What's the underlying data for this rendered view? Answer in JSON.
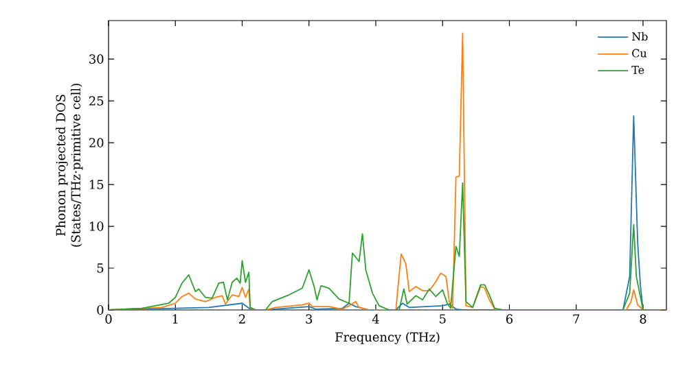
{
  "chart_data": {
    "type": "line",
    "xlabel": "Frequency (THz)",
    "ylabel": "Phonon projected DOS\n(States/THz·primitive cell)",
    "xlim": [
      0,
      8.35
    ],
    "ylim": [
      0,
      34.6
    ],
    "xticks": [
      0,
      1,
      2,
      3,
      4,
      5,
      6,
      7,
      8
    ],
    "yticks": [
      0,
      5,
      10,
      15,
      20,
      25,
      30
    ],
    "legend": "top right",
    "grid": false,
    "marker": "none",
    "line_style": "solid",
    "series": [
      {
        "name": "Nb",
        "color": "#1f77b4",
        "x": [
          0,
          1.0,
          1.5,
          2.0,
          2.12,
          2.2,
          2.35,
          3.0,
          3.1,
          3.5,
          3.6,
          3.7,
          3.9,
          4.3,
          4.4,
          4.5,
          5.0,
          5.1,
          5.2,
          5.3,
          7.7,
          7.8,
          7.86,
          7.92,
          7.96,
          8.0,
          8.35
        ],
        "values": [
          0,
          0.2,
          0.3,
          0.8,
          0.1,
          0,
          0,
          0.4,
          0.1,
          0.2,
          0.8,
          0.4,
          0,
          0,
          0.8,
          0.3,
          0.5,
          0.7,
          0.1,
          0,
          0,
          4,
          23.2,
          8,
          3,
          0,
          0
        ]
      },
      {
        "name": "Cu",
        "color": "#ff7f0e",
        "x": [
          0,
          0.8,
          1.0,
          1.1,
          1.2,
          1.3,
          1.45,
          1.6,
          1.7,
          1.75,
          1.85,
          1.95,
          2.0,
          2.05,
          2.1,
          2.12,
          2.2,
          2.35,
          2.5,
          2.9,
          3.0,
          3.05,
          3.3,
          3.5,
          3.6,
          3.7,
          3.75,
          3.9,
          4.3,
          4.38,
          4.45,
          4.5,
          4.6,
          4.7,
          4.8,
          4.9,
          4.97,
          5.05,
          5.1,
          5.15,
          5.2,
          5.25,
          5.3,
          5.35,
          5.45,
          5.57,
          5.63,
          5.7,
          5.78,
          5.9,
          7.75,
          7.82,
          7.86,
          7.92,
          8.0,
          8.35
        ],
        "values": [
          0,
          0.3,
          0.8,
          1.6,
          2.0,
          1.3,
          1.0,
          1.5,
          1.7,
          0.7,
          1.8,
          1.6,
          2.7,
          1.5,
          2.5,
          0.2,
          0,
          0,
          0.3,
          0.6,
          0.8,
          0.4,
          0.4,
          0.1,
          0.5,
          1.0,
          0.3,
          0,
          0,
          6.7,
          5.5,
          2.2,
          2.8,
          2.3,
          2.3,
          3.4,
          4.4,
          4.0,
          1.0,
          0.2,
          15.9,
          16.0,
          33.1,
          0.5,
          0.3,
          2.8,
          2.6,
          1.2,
          0.1,
          0,
          0,
          1.0,
          2.4,
          0.6,
          0,
          0
        ]
      },
      {
        "name": "Te",
        "color": "#2ca02c",
        "x": [
          0,
          0.5,
          0.9,
          1.0,
          1.1,
          1.2,
          1.3,
          1.35,
          1.45,
          1.55,
          1.65,
          1.72,
          1.78,
          1.85,
          1.92,
          1.97,
          2.0,
          2.05,
          2.1,
          2.12,
          2.2,
          2.35,
          2.45,
          2.7,
          2.9,
          3.0,
          3.08,
          3.12,
          3.18,
          3.3,
          3.45,
          3.6,
          3.65,
          3.75,
          3.8,
          3.85,
          3.95,
          4.05,
          4.2,
          4.35,
          4.42,
          4.47,
          4.6,
          4.7,
          4.8,
          4.9,
          5.0,
          5.07,
          5.12,
          5.2,
          5.25,
          5.3,
          5.35,
          5.45,
          5.57,
          5.63,
          5.7,
          5.78,
          5.9,
          7.7,
          7.8,
          7.86,
          7.9,
          7.95,
          8.0,
          8.35
        ],
        "values": [
          0,
          0.2,
          0.8,
          1.5,
          3.2,
          4.2,
          2.2,
          2.5,
          1.5,
          1.4,
          3.2,
          3.3,
          1.2,
          3.3,
          3.8,
          3.2,
          5.9,
          3.3,
          4.5,
          0.3,
          0,
          0,
          1.0,
          1.8,
          2.6,
          4.8,
          2.7,
          1.2,
          2.9,
          2.6,
          1.3,
          0.8,
          6.8,
          5.8,
          9.1,
          4.8,
          2.0,
          0.5,
          0,
          0,
          2.5,
          0.7,
          1.7,
          1.2,
          2.5,
          1.6,
          2.4,
          0.8,
          0.2,
          7.6,
          6.4,
          15.2,
          1.0,
          0.3,
          3.0,
          3.0,
          1.8,
          0.2,
          0,
          0,
          2.0,
          10.2,
          4.0,
          2.0,
          0,
          0
        ]
      }
    ]
  }
}
